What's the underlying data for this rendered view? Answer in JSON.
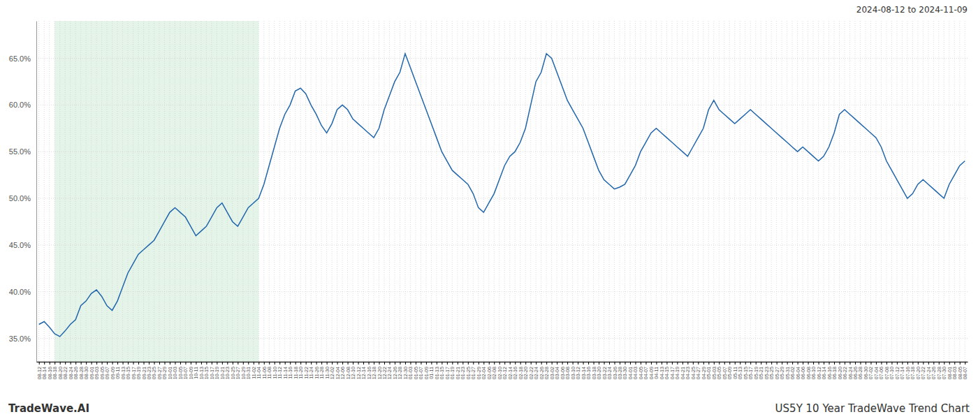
{
  "chart_data": {
    "type": "line",
    "annotations": [
      "2024-08-12 to 2024-11-09",
      "TradeWave.AI",
      "US5Y 10 Year TradeWave Trend Chart"
    ],
    "color": "#2166ac",
    "highlight": {
      "from": "08-18",
      "to": "11-04",
      "color": "#d4edda"
    },
    "grid": true,
    "ylim": [
      32.5,
      69.0
    ],
    "yticks": [
      {
        "value": 35.0,
        "label": "35.0%"
      },
      {
        "value": 40.0,
        "label": "40.0%"
      },
      {
        "value": 45.0,
        "label": "45.0%"
      },
      {
        "value": 50.0,
        "label": "50.0%"
      },
      {
        "value": 55.0,
        "label": "55.0%"
      },
      {
        "value": 60.0,
        "label": "60.0%"
      },
      {
        "value": 65.0,
        "label": "65.0%"
      }
    ],
    "categories": [
      "08-12",
      "08-14",
      "08-16",
      "08-18",
      "08-20",
      "08-22",
      "08-24",
      "08-26",
      "08-28",
      "08-30",
      "09-01",
      "09-03",
      "09-05",
      "09-07",
      "09-09",
      "09-11",
      "09-13",
      "09-15",
      "09-17",
      "09-19",
      "09-21",
      "09-23",
      "09-25",
      "09-27",
      "09-29",
      "10-01",
      "10-03",
      "10-05",
      "10-07",
      "10-09",
      "10-11",
      "10-13",
      "10-15",
      "10-17",
      "10-19",
      "10-21",
      "10-23",
      "10-25",
      "10-27",
      "10-29",
      "10-31",
      "11-02",
      "11-04",
      "11-06",
      "11-08",
      "11-10",
      "11-12",
      "11-14",
      "11-16",
      "11-18",
      "11-20",
      "11-22",
      "11-24",
      "11-26",
      "11-28",
      "11-30",
      "12-02",
      "12-04",
      "12-06",
      "12-08",
      "12-10",
      "12-12",
      "12-14",
      "12-16",
      "12-18",
      "12-20",
      "12-22",
      "12-24",
      "12-26",
      "12-28",
      "12-30",
      "01-03",
      "01-05",
      "01-07",
      "01-09",
      "01-11",
      "01-13",
      "01-15",
      "01-17",
      "01-19",
      "01-21",
      "01-23",
      "01-25",
      "01-27",
      "01-29",
      "02-04",
      "02-06",
      "02-08",
      "02-10",
      "02-12",
      "02-14",
      "02-16",
      "02-18",
      "02-20",
      "02-22",
      "02-24",
      "02-26",
      "02-28",
      "03-02",
      "03-04",
      "03-06",
      "03-08",
      "03-10",
      "03-12",
      "03-14",
      "03-16",
      "03-18",
      "03-20",
      "03-22",
      "03-24",
      "03-26",
      "03-28",
      "03-30",
      "04-01",
      "04-03",
      "04-05",
      "04-07",
      "04-09",
      "04-11",
      "04-13",
      "04-15",
      "04-17",
      "04-19",
      "04-21",
      "04-23",
      "04-25",
      "04-27",
      "04-29",
      "05-01",
      "05-03",
      "05-05",
      "05-07",
      "05-09",
      "05-11",
      "05-13",
      "05-15",
      "05-17",
      "05-19",
      "05-21",
      "05-23",
      "05-25",
      "05-27",
      "05-29",
      "05-31",
      "06-02",
      "06-04",
      "06-06",
      "06-08",
      "06-10",
      "06-12",
      "06-14",
      "06-16",
      "06-18",
      "06-20",
      "06-22",
      "06-24",
      "06-26",
      "06-28",
      "06-30",
      "07-02",
      "07-04",
      "07-06",
      "07-08",
      "07-10",
      "07-12",
      "07-14",
      "07-16",
      "07-18",
      "07-20",
      "07-22",
      "07-24",
      "07-26",
      "07-28",
      "07-30",
      "08-01",
      "08-03",
      "08-05",
      "08-07"
    ],
    "values": [
      36.5,
      36.8,
      36.2,
      35.5,
      35.2,
      35.8,
      36.5,
      37.0,
      38.5,
      39.0,
      39.8,
      40.2,
      39.5,
      38.5,
      38.0,
      39.0,
      40.5,
      42.0,
      43.0,
      44.0,
      44.5,
      45.0,
      45.5,
      46.5,
      47.5,
      48.5,
      49.0,
      48.5,
      48.0,
      47.0,
      46.0,
      46.5,
      47.0,
      48.0,
      49.0,
      49.5,
      48.5,
      47.5,
      47.0,
      48.0,
      49.0,
      49.5,
      50.0,
      51.5,
      53.5,
      55.5,
      57.5,
      59.0,
      60.0,
      61.5,
      61.8,
      61.2,
      60.0,
      59.0,
      57.8,
      57.0,
      58.0,
      59.5,
      60.0,
      59.5,
      58.5,
      58.0,
      57.5,
      57.0,
      56.5,
      57.5,
      59.5,
      61.0,
      62.5,
      63.5,
      65.5,
      64.0,
      62.5,
      61.0,
      59.5,
      58.0,
      56.5,
      55.0,
      54.0,
      53.0,
      52.5,
      52.0,
      51.5,
      50.5,
      49.0,
      48.5,
      49.5,
      50.5,
      52.0,
      53.5,
      54.5,
      55.0,
      56.0,
      57.5,
      60.0,
      62.5,
      63.5,
      65.5,
      65.0,
      63.5,
      62.0,
      60.5,
      59.5,
      58.5,
      57.5,
      56.0,
      54.5,
      53.0,
      52.0,
      51.5,
      51.0,
      51.2,
      51.5,
      52.5,
      53.5,
      55.0,
      56.0,
      57.0,
      57.5,
      57.0,
      56.5,
      56.0,
      55.5,
      55.0,
      54.5,
      55.5,
      56.5,
      57.5,
      59.5,
      60.5,
      59.5,
      59.0,
      58.5,
      58.0,
      58.5,
      59.0,
      59.5,
      59.0,
      58.5,
      58.0,
      57.5,
      57.0,
      56.5,
      56.0,
      55.5,
      55.0,
      55.5,
      55.0,
      54.5,
      54.0,
      54.5,
      55.5,
      57.0,
      59.0,
      59.5,
      59.0,
      58.5,
      58.0,
      57.5,
      57.0,
      56.5,
      55.5,
      54.0,
      53.0,
      52.0,
      51.0,
      50.0,
      50.5,
      51.5,
      52.0,
      51.5,
      51.0,
      50.5,
      50.0,
      51.5,
      52.5,
      53.5,
      54.0
    ]
  }
}
